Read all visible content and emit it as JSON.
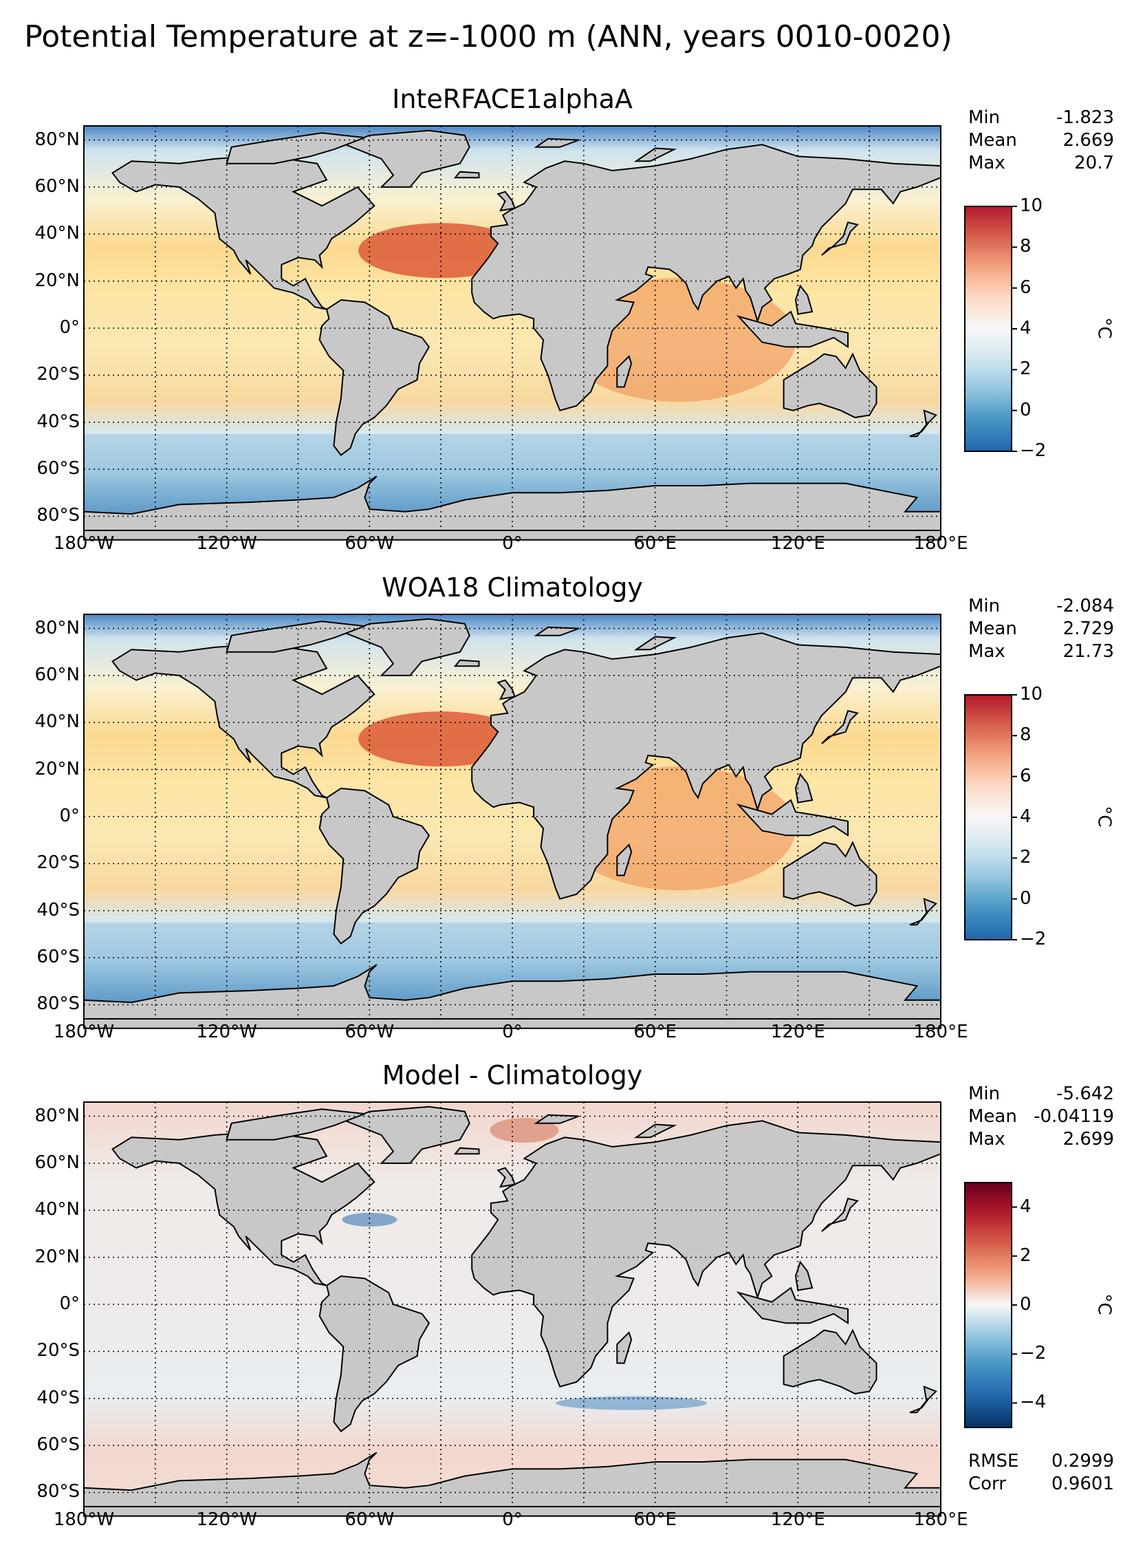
{
  "figure_title": "Potential Temperature at z=-1000 m (ANN, years 0010-0020)",
  "panels": [
    {
      "title": "InteRFACE1alphaA",
      "stats": [
        {
          "label": "Min",
          "value": "-1.823"
        },
        {
          "label": "Mean",
          "value": "2.669"
        },
        {
          "label": "Max",
          "value": "20.7"
        }
      ],
      "colorbar": {
        "ticks": [
          "10",
          "8",
          "6",
          "4",
          "2",
          "0",
          "−2"
        ],
        "unit": "°C",
        "colors": [
          "#b2182b",
          "#d6604d",
          "#f4a582",
          "#fddbc7",
          "#f7f7f7",
          "#d1e5f0",
          "#92c5de",
          "#4393c3",
          "#2166ac"
        ]
      }
    },
    {
      "title": "WOA18 Climatology",
      "stats": [
        {
          "label": "Min",
          "value": "-2.084"
        },
        {
          "label": "Mean",
          "value": "2.729"
        },
        {
          "label": "Max",
          "value": "21.73"
        }
      ],
      "colorbar": {
        "ticks": [
          "10",
          "8",
          "6",
          "4",
          "2",
          "0",
          "−2"
        ],
        "unit": "°C",
        "colors": [
          "#b2182b",
          "#d6604d",
          "#f4a582",
          "#fddbc7",
          "#f7f7f7",
          "#d1e5f0",
          "#92c5de",
          "#4393c3",
          "#2166ac"
        ]
      }
    },
    {
      "title": "Model - Climatology",
      "stats": [
        {
          "label": "Min",
          "value": "-5.642"
        },
        {
          "label": "Mean",
          "value": "-0.04119"
        },
        {
          "label": "Max",
          "value": "2.699"
        }
      ],
      "extra_stats": [
        {
          "label": "RMSE",
          "value": "0.2999"
        },
        {
          "label": "Corr",
          "value": "0.9601"
        }
      ],
      "colorbar": {
        "ticks": [
          "4",
          "2",
          "0",
          "−2",
          "−4"
        ],
        "unit": "°C",
        "colors": [
          "#67001f",
          "#b2182b",
          "#d6604d",
          "#f4a582",
          "#f7f7f7",
          "#92c5de",
          "#4393c3",
          "#2166ac",
          "#053061"
        ]
      }
    }
  ],
  "lat_labels": [
    "80°N",
    "60°N",
    "40°N",
    "20°N",
    "0°",
    "20°S",
    "40°S",
    "60°S",
    "80°S"
  ],
  "lon_labels": [
    "180°W",
    "120°W",
    "60°W",
    "0°",
    "60°E",
    "120°E",
    "180°E"
  ],
  "colors": {
    "land": "#c8c8c8",
    "coast": "#000000",
    "grid": "#000000"
  }
}
